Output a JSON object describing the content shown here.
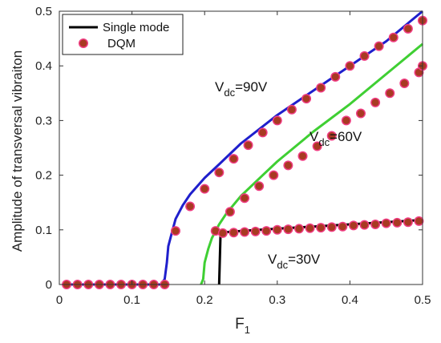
{
  "chart_data": {
    "type": "line",
    "xlabel_main": "F",
    "xlabel_sub": "1",
    "ylabel": "Amplitude of transversal vibraiton",
    "xlim": [
      0,
      0.5
    ],
    "ylim": [
      0,
      0.5
    ],
    "x_ticks": [
      "0",
      "0.1",
      "0.2",
      "0.3",
      "0.4",
      "0.5"
    ],
    "y_ticks": [
      "0",
      "0.1",
      "0.2",
      "0.3",
      "0.4",
      "0.5"
    ],
    "grid": false,
    "legend": {
      "position": "top-left",
      "entries": [
        {
          "label": "Single mode",
          "kind": "line",
          "color": "#000000"
        },
        {
          "label": "DQM",
          "kind": "marker",
          "color": "#b5451b"
        }
      ]
    },
    "marker_fill": "#a83a22",
    "marker_halo": "#f03c82",
    "series": [
      {
        "color": "#1f1fcc",
        "curve": [
          [
            0.01,
            0
          ],
          [
            0.14,
            0
          ],
          [
            0.145,
            0.01
          ],
          [
            0.148,
            0.04
          ],
          [
            0.15,
            0.07
          ],
          [
            0.155,
            0.095
          ],
          [
            0.16,
            0.12
          ],
          [
            0.17,
            0.145
          ],
          [
            0.18,
            0.165
          ],
          [
            0.2,
            0.195
          ],
          [
            0.22,
            0.22
          ],
          [
            0.25,
            0.258
          ],
          [
            0.3,
            0.31
          ],
          [
            0.35,
            0.355
          ],
          [
            0.4,
            0.4
          ],
          [
            0.45,
            0.445
          ],
          [
            0.5,
            0.5
          ]
        ],
        "markers": [
          [
            0.01,
            0
          ],
          [
            0.025,
            0
          ],
          [
            0.04,
            0
          ],
          [
            0.055,
            0
          ],
          [
            0.07,
            0
          ],
          [
            0.085,
            0
          ],
          [
            0.1,
            0
          ],
          [
            0.115,
            0
          ],
          [
            0.13,
            0
          ],
          [
            0.145,
            0
          ],
          [
            0.16,
            0.098
          ],
          [
            0.18,
            0.143
          ],
          [
            0.2,
            0.175
          ],
          [
            0.22,
            0.205
          ],
          [
            0.24,
            0.23
          ],
          [
            0.26,
            0.255
          ],
          [
            0.28,
            0.278
          ],
          [
            0.3,
            0.3
          ],
          [
            0.32,
            0.32
          ],
          [
            0.34,
            0.34
          ],
          [
            0.36,
            0.36
          ],
          [
            0.38,
            0.38
          ],
          [
            0.4,
            0.4
          ],
          [
            0.42,
            0.418
          ],
          [
            0.44,
            0.436
          ],
          [
            0.46,
            0.452
          ],
          [
            0.48,
            0.468
          ],
          [
            0.5,
            0.483
          ]
        ],
        "label_main": "V",
        "label_sub": "dc",
        "label_rest": "=90V"
      },
      {
        "color": "#3fcf33",
        "curve": [
          [
            0.195,
            0
          ],
          [
            0.198,
            0.01
          ],
          [
            0.2,
            0.04
          ],
          [
            0.205,
            0.065
          ],
          [
            0.21,
            0.085
          ],
          [
            0.22,
            0.11
          ],
          [
            0.23,
            0.13
          ],
          [
            0.25,
            0.162
          ],
          [
            0.28,
            0.2
          ],
          [
            0.3,
            0.225
          ],
          [
            0.35,
            0.28
          ],
          [
            0.4,
            0.33
          ],
          [
            0.45,
            0.385
          ],
          [
            0.5,
            0.44
          ]
        ],
        "markers": [
          [
            0.215,
            0.098
          ],
          [
            0.235,
            0.133
          ],
          [
            0.255,
            0.158
          ],
          [
            0.275,
            0.18
          ],
          [
            0.295,
            0.2
          ],
          [
            0.315,
            0.218
          ],
          [
            0.335,
            0.235
          ],
          [
            0.355,
            0.253
          ],
          [
            0.375,
            0.272
          ],
          [
            0.395,
            0.3
          ],
          [
            0.415,
            0.313
          ],
          [
            0.435,
            0.333
          ],
          [
            0.455,
            0.35
          ],
          [
            0.475,
            0.368
          ],
          [
            0.495,
            0.388
          ],
          [
            0.5,
            0.4
          ]
        ],
        "label_main": "V",
        "label_sub": "dc",
        "label_rest": "=60V"
      },
      {
        "color": "#000000",
        "curve": [
          [
            0.22,
            0
          ],
          [
            0.222,
            0.095
          ],
          [
            0.25,
            0.098
          ],
          [
            0.3,
            0.102
          ],
          [
            0.35,
            0.106
          ],
          [
            0.4,
            0.11
          ],
          [
            0.45,
            0.114
          ],
          [
            0.5,
            0.118
          ]
        ],
        "markers": [
          [
            0.225,
            0.094
          ],
          [
            0.24,
            0.095
          ],
          [
            0.255,
            0.096
          ],
          [
            0.27,
            0.097
          ],
          [
            0.285,
            0.098
          ],
          [
            0.3,
            0.1
          ],
          [
            0.315,
            0.101
          ],
          [
            0.33,
            0.102
          ],
          [
            0.345,
            0.103
          ],
          [
            0.36,
            0.104
          ],
          [
            0.375,
            0.105
          ],
          [
            0.39,
            0.106
          ],
          [
            0.405,
            0.108
          ],
          [
            0.42,
            0.109
          ],
          [
            0.435,
            0.11
          ],
          [
            0.45,
            0.112
          ],
          [
            0.465,
            0.113
          ],
          [
            0.48,
            0.114
          ],
          [
            0.495,
            0.116
          ]
        ],
        "label_main": "V",
        "label_sub": "dc",
        "label_rest": "=30V"
      }
    ]
  }
}
